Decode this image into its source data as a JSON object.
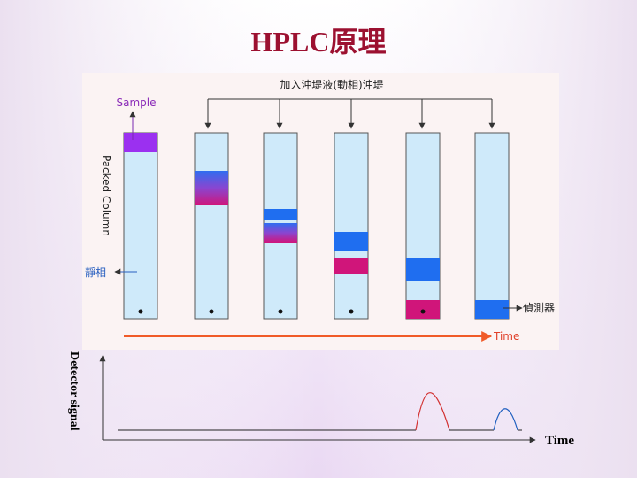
{
  "title": "HPLC原理",
  "diagram": {
    "eluent_label": "加入沖堤液(動相)沖堤",
    "sample_label": "Sample",
    "column_label": "Packed Column",
    "stationary_label": "靜相",
    "detector_label": "偵測器",
    "time_label": "Time"
  },
  "signal_plot": {
    "y_label": "Detector signal",
    "x_label": "Time"
  }
}
